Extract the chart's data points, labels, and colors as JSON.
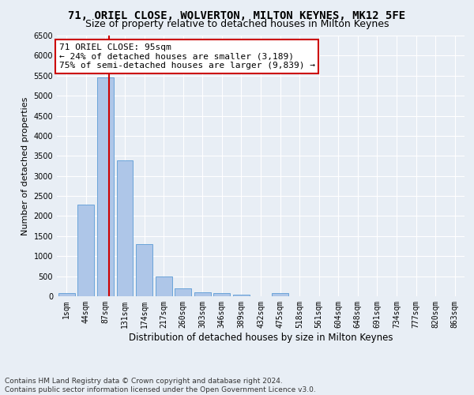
{
  "title1": "71, ORIEL CLOSE, WOLVERTON, MILTON KEYNES, MK12 5FE",
  "title2": "Size of property relative to detached houses in Milton Keynes",
  "xlabel": "Distribution of detached houses by size in Milton Keynes",
  "ylabel": "Number of detached properties",
  "footer1": "Contains HM Land Registry data © Crown copyright and database right 2024.",
  "footer2": "Contains public sector information licensed under the Open Government Licence v3.0.",
  "bin_labels": [
    "1sqm",
    "44sqm",
    "87sqm",
    "131sqm",
    "174sqm",
    "217sqm",
    "260sqm",
    "303sqm",
    "346sqm",
    "389sqm",
    "432sqm",
    "475sqm",
    "518sqm",
    "561sqm",
    "604sqm",
    "648sqm",
    "691sqm",
    "734sqm",
    "777sqm",
    "820sqm",
    "863sqm"
  ],
  "bar_values": [
    70,
    2280,
    5450,
    3380,
    1300,
    490,
    195,
    100,
    70,
    30,
    0,
    70,
    0,
    0,
    0,
    0,
    0,
    0,
    0,
    0,
    0
  ],
  "bar_color": "#aec6e8",
  "bar_edge_color": "#5b9bd5",
  "property_line_color": "#cc0000",
  "annotation_line1": "71 ORIEL CLOSE: 95sqm",
  "annotation_line2": "← 24% of detached houses are smaller (3,189)",
  "annotation_line3": "75% of semi-detached houses are larger (9,839) →",
  "annotation_box_color": "#ffffff",
  "annotation_box_edge": "#cc0000",
  "ylim": [
    0,
    6500
  ],
  "yticks": [
    0,
    500,
    1000,
    1500,
    2000,
    2500,
    3000,
    3500,
    4000,
    4500,
    5000,
    5500,
    6000,
    6500
  ],
  "bg_color": "#e8eef5",
  "plot_bg_color": "#e8eef5",
  "grid_color": "#ffffff",
  "title1_fontsize": 10,
  "title2_fontsize": 9,
  "xlabel_fontsize": 8.5,
  "ylabel_fontsize": 8,
  "tick_fontsize": 7,
  "annotation_fontsize": 8,
  "footer_fontsize": 6.5
}
